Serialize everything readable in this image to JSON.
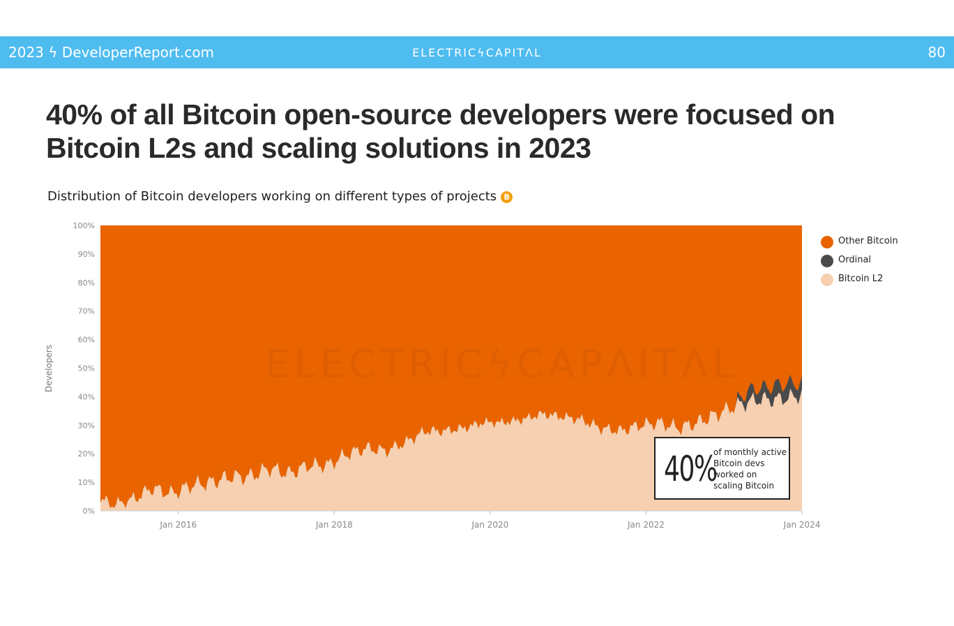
{
  "banner": {
    "left": "2023 ϟ DeveloperReport.com",
    "center": "ELECTRICϟCAPITΛL",
    "page": "80",
    "background": "#4fbcf0"
  },
  "headline_line1": "40% of all Bitcoin open-source developers were focused on",
  "headline_line2": "Bitcoin L2s and scaling solutions in  2023",
  "subtitle": "Distribution of Bitcoin developers working on different types of projects",
  "watermark": "ELECTRICϟCAPΛITΛL",
  "callout": {
    "big": "40%",
    "text": "of monthly active Bitcoin devs worked on scaling Bitcoin"
  },
  "chart_data": {
    "type": "area",
    "stacked": true,
    "normalized": true,
    "ylabel": "Developers",
    "ylim": [
      0,
      100
    ],
    "y_ticks": [
      "0%",
      "10%",
      "20%",
      "30%",
      "40%",
      "50%",
      "60%",
      "70%",
      "80%",
      "90%",
      "100%"
    ],
    "x_ticks": [
      "Jan 2016",
      "Jan 2018",
      "Jan 2020",
      "Jan 2022",
      "Jan 2024"
    ],
    "x_range": [
      "2015-01",
      "2024-01"
    ],
    "legend_position": "right",
    "series": [
      {
        "name": "Other Bitcoin",
        "color": "#e96400",
        "values": "remainder to 100%"
      },
      {
        "name": "Ordinal",
        "color": "#4a4a4a",
        "x": [
          "2023-03",
          "2023-05",
          "2023-07",
          "2023-09",
          "2023-11",
          "2024-01"
        ],
        "values": [
          2,
          4,
          4,
          5,
          5,
          4
        ]
      },
      {
        "name": "Bitcoin L2",
        "color": "#f6d0b0",
        "x": [
          "2015-01",
          "2015-03",
          "2015-06",
          "2015-09",
          "2015-12",
          "2016-03",
          "2016-06",
          "2016-09",
          "2016-12",
          "2017-03",
          "2017-06",
          "2017-09",
          "2017-12",
          "2018-03",
          "2018-06",
          "2018-09",
          "2018-12",
          "2019-03",
          "2019-06",
          "2019-09",
          "2019-12",
          "2020-03",
          "2020-06",
          "2020-09",
          "2020-12",
          "2021-03",
          "2021-06",
          "2021-09",
          "2021-12",
          "2022-03",
          "2022-06",
          "2022-09",
          "2022-12",
          "2023-03",
          "2023-06",
          "2023-09",
          "2023-12",
          "2024-01"
        ],
        "values": [
          4,
          2,
          4,
          8,
          6,
          9,
          10,
          12,
          12,
          15,
          13,
          16,
          16,
          20,
          22,
          21,
          24,
          28,
          28,
          29,
          31,
          31,
          32,
          34,
          33,
          32,
          29,
          28,
          30,
          31,
          29,
          31,
          34,
          37,
          39,
          39,
          40,
          41
        ]
      }
    ]
  }
}
